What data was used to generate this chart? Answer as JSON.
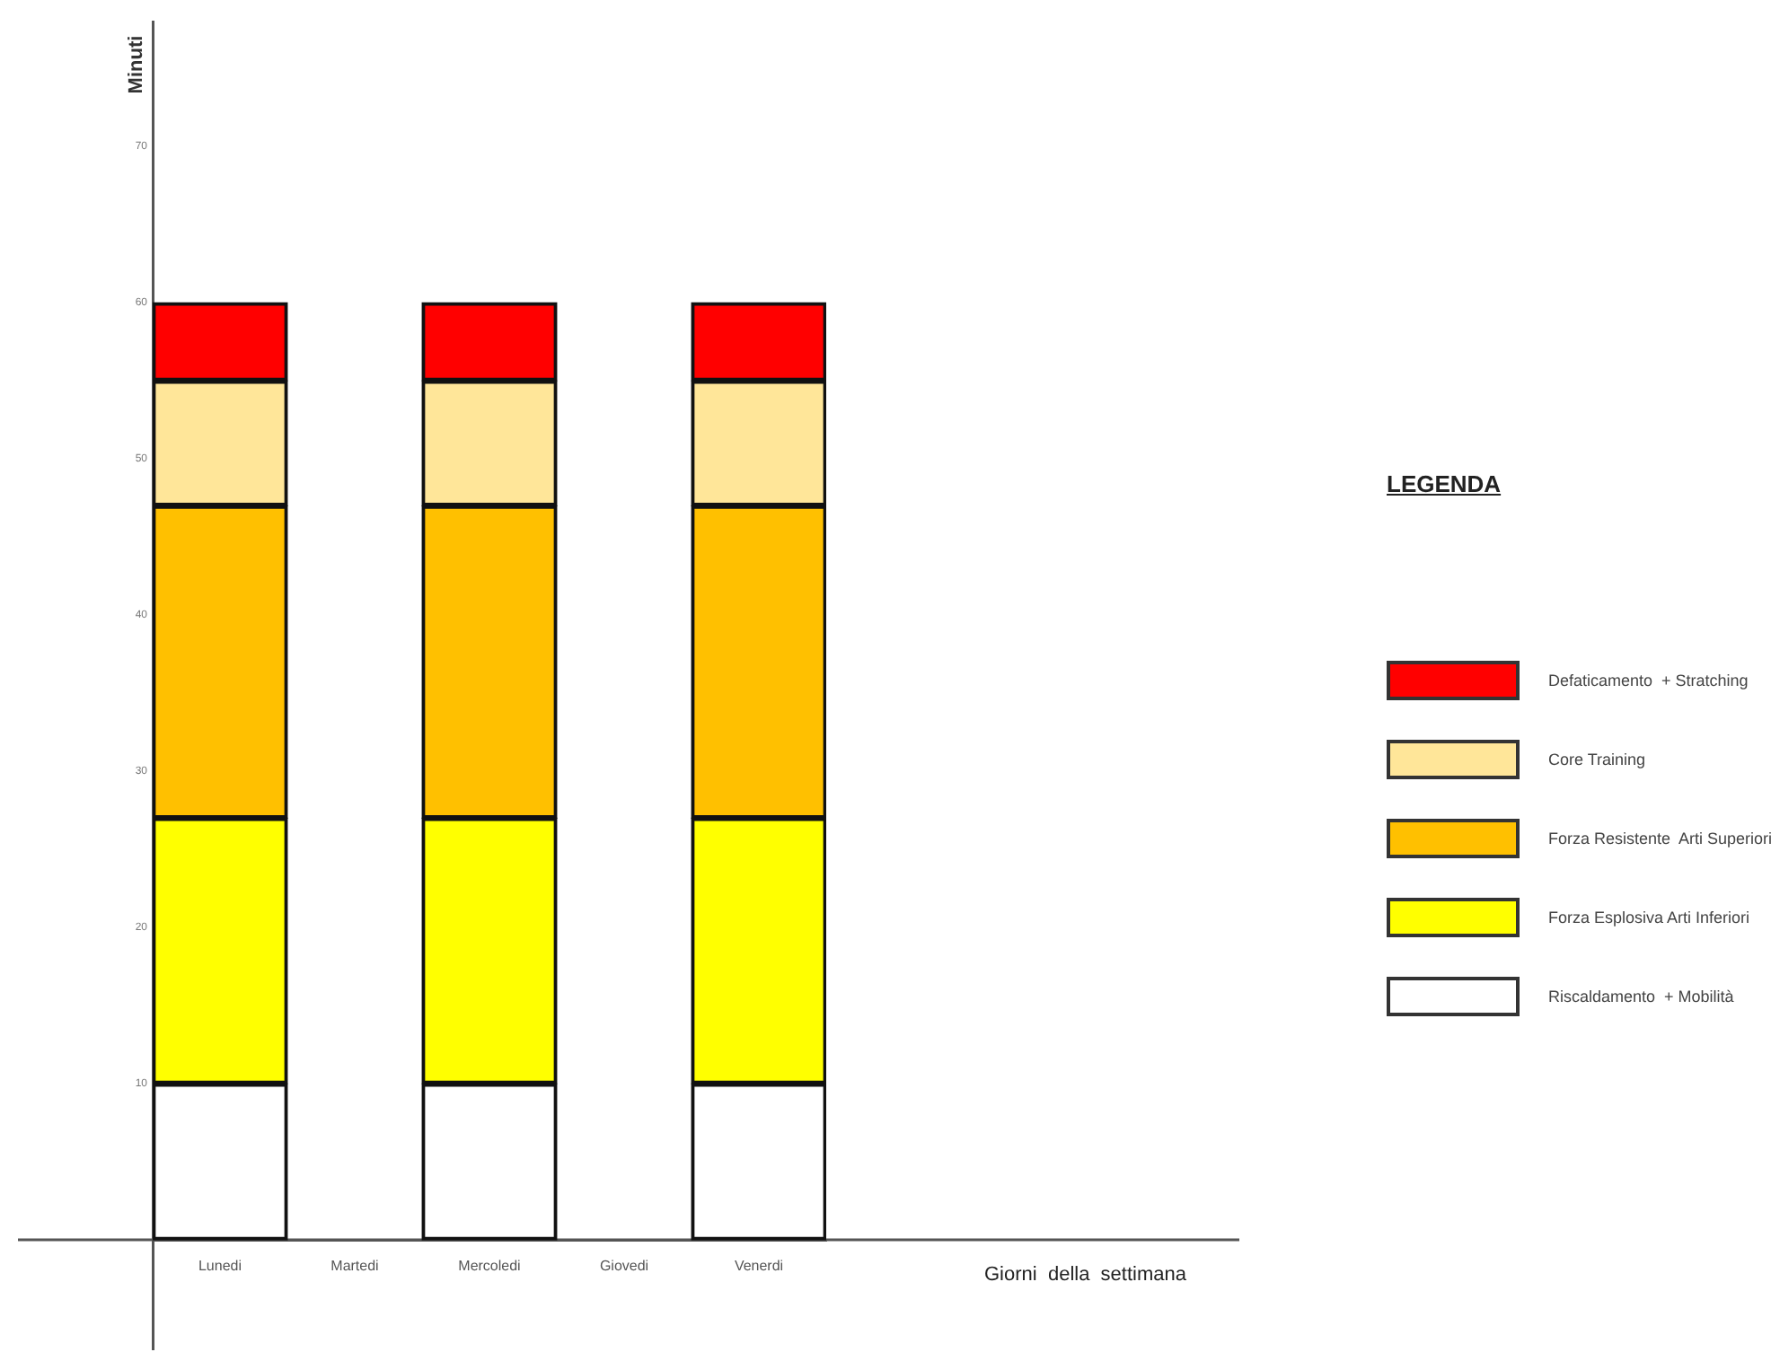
{
  "chart_data": {
    "type": "bar",
    "stacked": true,
    "ylabel": "Minuti",
    "annotations": [
      "Giorni  della  settimana"
    ],
    "legend_title": "LEGENDA",
    "legend": "right",
    "grid": false,
    "categories": [
      "Lunedi",
      "Martedi",
      "Mercoledi",
      "Giovedi",
      "Venerdi"
    ],
    "ylim": [
      -7,
      78
    ],
    "yticks": [
      10,
      20,
      30,
      40,
      50,
      60,
      70
    ],
    "series": [
      {
        "name": "Riscaldamento  + Mobilità",
        "color": "#ffffff",
        "values": [
          10,
          null,
          10,
          null,
          10
        ]
      },
      {
        "name": "Forza Esplosiva Arti Inferiori",
        "color": "#ffff00",
        "values": [
          17,
          null,
          17,
          null,
          17
        ]
      },
      {
        "name": "Forza Resistente  Arti Superiori",
        "color": "#ffc000",
        "values": [
          20,
          null,
          20,
          null,
          20
        ]
      },
      {
        "name": "Core Training",
        "color": "#ffe699",
        "values": [
          8,
          null,
          8,
          null,
          8
        ]
      },
      {
        "name": "Defaticamento  + Stratching",
        "color": "#ff0000",
        "values": [
          5,
          null,
          5,
          null,
          5
        ]
      }
    ]
  }
}
